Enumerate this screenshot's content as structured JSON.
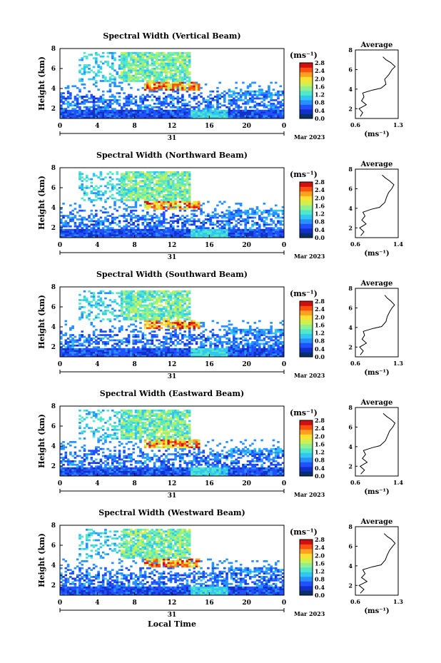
{
  "chart_data": [
    {
      "type": "heatmap",
      "title": "Spectral Width (Vertical Beam)",
      "beam": "Vertical",
      "ylabel": "Height (km)",
      "xticks": [
        "0",
        "4",
        "8",
        "12",
        "16",
        "20",
        "0"
      ],
      "xlim_hours": [
        0,
        24
      ],
      "ylim": [
        1,
        8
      ],
      "yticks": [
        "2",
        "4",
        "6",
        "8"
      ],
      "date_tick": "31",
      "date_label": "Mar 2023",
      "colorbar": {
        "unit": "(ms⁻¹)",
        "ticks": [
          "2.8",
          "2.4",
          "2.0",
          "1.6",
          "1.2",
          "0.8",
          "0.4",
          "0.0"
        ],
        "min": 0.0,
        "max": 2.8
      },
      "average": {
        "title": "Average",
        "xlabel": "(ms⁻¹)",
        "xticks": [
          "0.6",
          "1.3"
        ],
        "xlim": [
          0.6,
          1.3
        ],
        "yticks": [
          "2",
          "4",
          "6",
          "8"
        ],
        "profile": [
          [
            0.68,
            1.2
          ],
          [
            0.72,
            1.6
          ],
          [
            0.66,
            2.0
          ],
          [
            0.78,
            2.4
          ],
          [
            0.7,
            2.8
          ],
          [
            0.74,
            3.2
          ],
          [
            0.72,
            3.6
          ],
          [
            0.88,
            3.9
          ],
          [
            1.02,
            4.1
          ],
          [
            1.1,
            4.5
          ],
          [
            1.08,
            5.0
          ],
          [
            1.15,
            5.5
          ],
          [
            1.2,
            6.0
          ],
          [
            1.25,
            6.3
          ],
          [
            1.18,
            6.7
          ],
          [
            1.1,
            7.0
          ],
          [
            1.05,
            7.3
          ]
        ]
      }
    },
    {
      "type": "heatmap",
      "title": "Spectral Width (Northward Beam)",
      "beam": "Northward",
      "ylabel": "Height (km)",
      "xticks": [
        "0",
        "4",
        "8",
        "12",
        "16",
        "20",
        "0"
      ],
      "xlim_hours": [
        0,
        24
      ],
      "ylim": [
        1,
        8
      ],
      "yticks": [
        "2",
        "4",
        "6",
        "8"
      ],
      "date_tick": "31",
      "date_label": "Mar 2023",
      "colorbar": {
        "unit": "(ms⁻¹)",
        "ticks": [
          "2.8",
          "2.4",
          "2.0",
          "1.6",
          "1.2",
          "0.8",
          "0.4",
          "0.0"
        ],
        "min": 0.0,
        "max": 2.8
      },
      "average": {
        "title": "Average",
        "xlabel": "(ms⁻¹)",
        "xticks": [
          "0.6",
          "1.4"
        ],
        "xlim": [
          0.6,
          1.4
        ],
        "yticks": [
          "2",
          "4",
          "6",
          "8"
        ],
        "profile": [
          [
            0.7,
            1.2
          ],
          [
            0.76,
            1.6
          ],
          [
            0.68,
            2.0
          ],
          [
            0.8,
            2.4
          ],
          [
            0.72,
            2.8
          ],
          [
            0.78,
            3.2
          ],
          [
            0.74,
            3.6
          ],
          [
            0.9,
            3.9
          ],
          [
            1.05,
            4.1
          ],
          [
            1.15,
            4.6
          ],
          [
            1.18,
            5.1
          ],
          [
            1.22,
            5.6
          ],
          [
            1.28,
            6.0
          ],
          [
            1.32,
            6.4
          ],
          [
            1.24,
            6.8
          ],
          [
            1.16,
            7.1
          ],
          [
            1.1,
            7.4
          ]
        ]
      }
    },
    {
      "type": "heatmap",
      "title": "Spectral Width (Southward Beam)",
      "beam": "Southward",
      "ylabel": "Height (km)",
      "xticks": [
        "0",
        "4",
        "8",
        "12",
        "16",
        "20",
        "0"
      ],
      "xlim_hours": [
        0,
        24
      ],
      "ylim": [
        1,
        8
      ],
      "yticks": [
        "2",
        "4",
        "6",
        "8"
      ],
      "date_tick": "31",
      "date_label": "Mar 2023",
      "colorbar": {
        "unit": "(ms⁻¹)",
        "ticks": [
          "2.8",
          "2.4",
          "2.0",
          "1.6",
          "1.2",
          "0.8",
          "0.4",
          "0.0"
        ],
        "min": 0.0,
        "max": 2.8
      },
      "average": {
        "title": "Average",
        "xlabel": "(ms⁻¹)",
        "xticks": [
          "0.6",
          "1.3"
        ],
        "xlim": [
          0.6,
          1.3
        ],
        "yticks": [
          "2",
          "4",
          "6",
          "8"
        ],
        "profile": [
          [
            0.68,
            1.2
          ],
          [
            0.73,
            1.6
          ],
          [
            0.67,
            2.0
          ],
          [
            0.78,
            2.4
          ],
          [
            0.71,
            2.8
          ],
          [
            0.75,
            3.2
          ],
          [
            0.73,
            3.6
          ],
          [
            0.89,
            3.9
          ],
          [
            1.03,
            4.1
          ],
          [
            1.1,
            4.6
          ],
          [
            1.12,
            5.1
          ],
          [
            1.16,
            5.6
          ],
          [
            1.2,
            6.0
          ],
          [
            1.24,
            6.3
          ],
          [
            1.18,
            6.7
          ],
          [
            1.12,
            7.0
          ],
          [
            1.08,
            7.3
          ]
        ]
      }
    },
    {
      "type": "heatmap",
      "title": "Spectral Width (Eastward Beam)",
      "beam": "Eastward",
      "ylabel": "Height (km)",
      "xticks": [
        "0",
        "4",
        "8",
        "12",
        "16",
        "20",
        "0"
      ],
      "xlim_hours": [
        0,
        24
      ],
      "ylim": [
        1,
        8
      ],
      "yticks": [
        "2",
        "4",
        "6",
        "8"
      ],
      "date_tick": "31",
      "date_label": "Mar 2023",
      "colorbar": {
        "unit": "(ms⁻¹)",
        "ticks": [
          "2.8",
          "2.4",
          "2.0",
          "1.6",
          "1.2",
          "0.8",
          "0.4",
          "0.0"
        ],
        "min": 0.0,
        "max": 2.8
      },
      "average": {
        "title": "Average",
        "xlabel": "(ms⁻¹)",
        "xticks": [
          "0.6",
          "1.4"
        ],
        "xlim": [
          0.6,
          1.4
        ],
        "yticks": [
          "2",
          "4",
          "6",
          "8"
        ],
        "profile": [
          [
            0.7,
            1.2
          ],
          [
            0.77,
            1.6
          ],
          [
            0.69,
            2.0
          ],
          [
            0.82,
            2.4
          ],
          [
            0.73,
            2.8
          ],
          [
            0.79,
            3.2
          ],
          [
            0.75,
            3.6
          ],
          [
            0.92,
            3.9
          ],
          [
            1.06,
            4.1
          ],
          [
            1.16,
            4.6
          ],
          [
            1.2,
            5.1
          ],
          [
            1.24,
            5.6
          ],
          [
            1.3,
            6.0
          ],
          [
            1.34,
            6.4
          ],
          [
            1.26,
            6.8
          ],
          [
            1.18,
            7.1
          ],
          [
            1.12,
            7.4
          ]
        ]
      }
    },
    {
      "type": "heatmap",
      "title": "Spectral Width (Westward Beam)",
      "beam": "Westward",
      "ylabel": "Height (km)",
      "xticks": [
        "0",
        "4",
        "8",
        "12",
        "16",
        "20",
        "0"
      ],
      "xlim_hours": [
        0,
        24
      ],
      "ylim": [
        1,
        8
      ],
      "yticks": [
        "2",
        "4",
        "6",
        "8"
      ],
      "date_tick": "31",
      "date_label": "Mar 2023",
      "xlabel": "Local Time",
      "colorbar": {
        "unit": "(ms⁻¹)",
        "ticks": [
          "2.8",
          "2.4",
          "2.0",
          "1.6",
          "1.2",
          "0.8",
          "0.4",
          "0.0"
        ],
        "min": 0.0,
        "max": 2.8
      },
      "average": {
        "title": "Average",
        "xlabel": "(ms⁻¹)",
        "xticks": [
          "0.6",
          "1.3"
        ],
        "xlim": [
          0.6,
          1.3
        ],
        "yticks": [
          "2",
          "4",
          "6",
          "8"
        ],
        "profile": [
          [
            0.68,
            1.2
          ],
          [
            0.74,
            1.6
          ],
          [
            0.66,
            2.0
          ],
          [
            0.79,
            2.4
          ],
          [
            0.7,
            2.8
          ],
          [
            0.76,
            3.2
          ],
          [
            0.72,
            3.6
          ],
          [
            0.88,
            3.9
          ],
          [
            1.02,
            4.1
          ],
          [
            1.09,
            4.6
          ],
          [
            1.12,
            5.1
          ],
          [
            1.16,
            5.6
          ],
          [
            1.21,
            6.0
          ],
          [
            1.25,
            6.3
          ],
          [
            1.19,
            6.7
          ],
          [
            1.12,
            7.0
          ],
          [
            1.07,
            7.3
          ]
        ]
      }
    }
  ],
  "colors": {
    "colormap": [
      "#08306b",
      "#1030c8",
      "#2050ff",
      "#2890ff",
      "#30c8f0",
      "#50e8c8",
      "#90f090",
      "#d0f050",
      "#ffe030",
      "#ffa020",
      "#ff5010",
      "#d01010"
    ],
    "axis": "#000000",
    "background": "#ffffff"
  }
}
